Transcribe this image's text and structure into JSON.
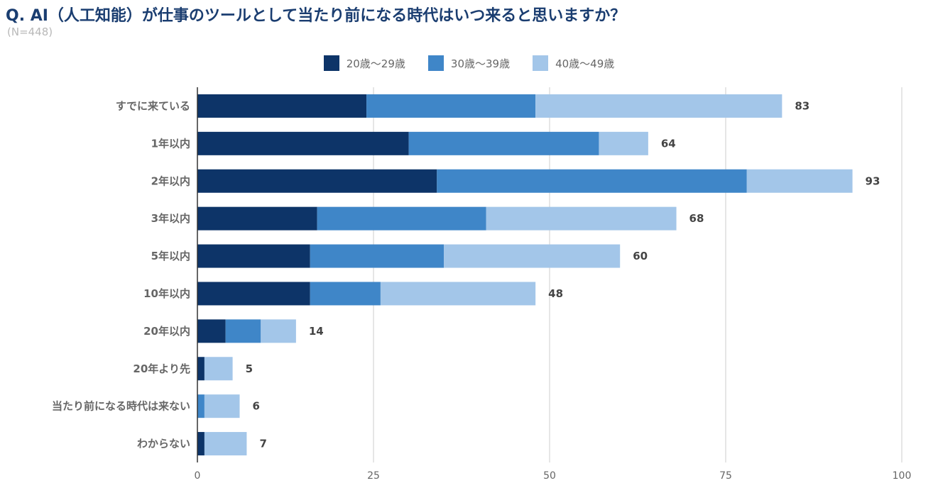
{
  "header": {
    "title": "Q. AI（人工知能）が仕事のツールとして当たり前になる時代はいつ来ると思いますか？",
    "subtitle": "(N=448)"
  },
  "chart_data": {
    "type": "bar",
    "orientation": "horizontal",
    "stacked": true,
    "categories": [
      "すでに来ている",
      "1年以内",
      "2年以内",
      "3年以内",
      "5年以内",
      "10年以内",
      "20年以内",
      "20年より先",
      "当たり前になる時代は来ない",
      "わからない"
    ],
    "series": [
      {
        "name": "20歳〜29歳",
        "color": "#0d3468",
        "values": [
          24,
          30,
          34,
          17,
          16,
          16,
          4,
          1,
          0,
          1
        ]
      },
      {
        "name": "30歳〜39歳",
        "color": "#3f86c8",
        "values": [
          24,
          27,
          44,
          24,
          19,
          10,
          5,
          0,
          1,
          0
        ]
      },
      {
        "name": "40歳〜49歳",
        "color": "#a3c6e9",
        "values": [
          35,
          7,
          15,
          27,
          25,
          22,
          5,
          4,
          5,
          6
        ]
      }
    ],
    "totals": [
      "83",
      "64",
      "93",
      "68",
      "60",
      "48",
      "14",
      "5",
      "6",
      "7"
    ],
    "xlim": [
      0,
      100
    ],
    "xticks": [
      "0",
      "25",
      "50",
      "75",
      "100"
    ],
    "grid": true,
    "legend_position": "top"
  }
}
